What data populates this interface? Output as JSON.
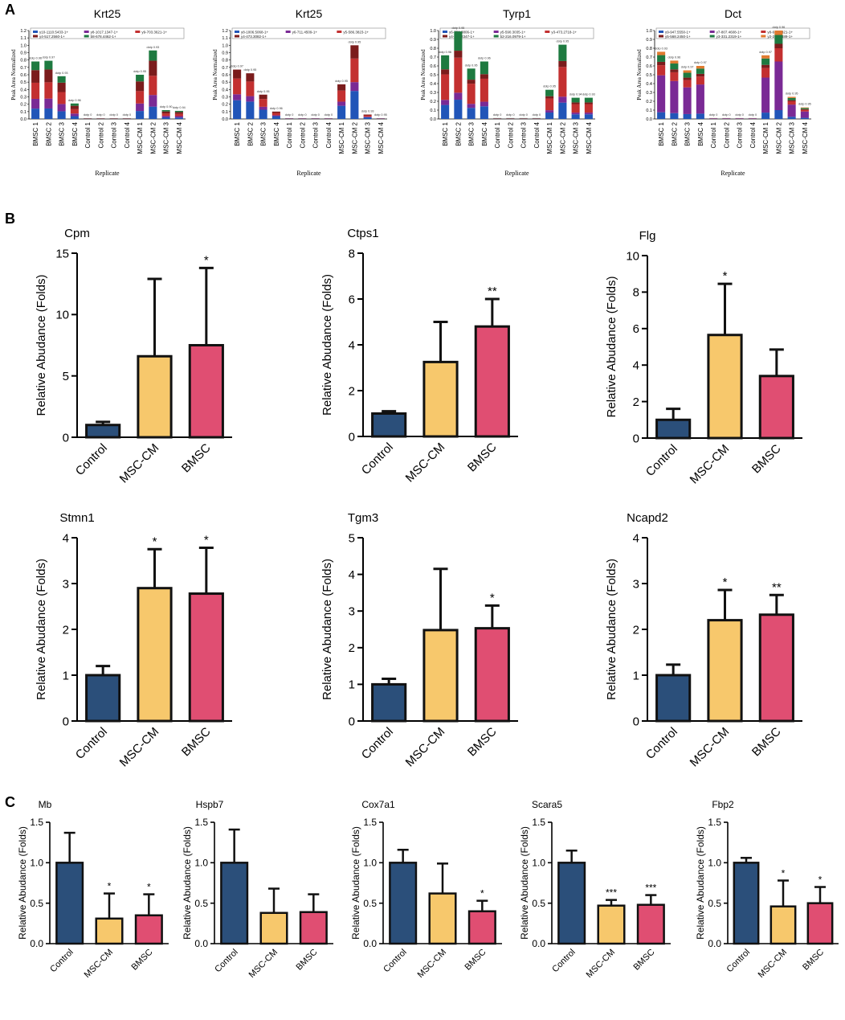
{
  "panel_labels": [
    "A",
    "B",
    "C"
  ],
  "chart_data": [
    {
      "panel": "A",
      "type": "bar",
      "stacked": true,
      "title": "Krt25",
      "ylabel": "Peak Area Normalized",
      "xlabel": "Replicate",
      "ylim": [
        0,
        1.2
      ],
      "yticks": [
        0.0,
        0.1,
        0.2,
        0.3,
        0.4,
        0.5,
        0.6,
        0.7,
        0.8,
        0.9,
        1.0,
        1.1,
        1.2
      ],
      "categories": [
        "BMSC 1",
        "BMSC 2",
        "BMSC 3",
        "BMSC 4",
        "Control 1",
        "Control 2",
        "Control 3",
        "Control 4",
        "MSC-CM 1",
        "MSC-CM 2",
        "MSC-CM 3",
        "MSC-CM 4"
      ],
      "totals": [
        0.78,
        0.79,
        0.58,
        0.21,
        0.01,
        0.01,
        0.01,
        0.01,
        0.6,
        0.93,
        0.12,
        0.11
      ],
      "legend": [
        "y10-1110.5433-1+",
        "y8-1017.1347-1+",
        "y9-703.3621-1+",
        "y4-517.2560-1+",
        "b8-678.4462-1+"
      ],
      "colors": [
        "#2155b8",
        "#7a2a95",
        "#c33030",
        "#7b1c1c",
        "#1e7a40"
      ],
      "fractions": [
        0.18,
        0.17,
        0.28,
        0.22,
        0.15
      ],
      "point_labels": [
        "dotp 0.96",
        "dotp 0.97",
        "dotp 0.93",
        "dotp 0.96",
        "dotp 0",
        "dotp 0",
        "dotp 0",
        "dotp 0",
        "dotp 0.95",
        "dotp 0.93",
        "dotp 0.90",
        "dotp 0.94"
      ]
    },
    {
      "panel": "A",
      "type": "bar",
      "stacked": true,
      "title": "Krt25",
      "ylabel": "Peak Area Normalized",
      "xlabel": "Replicate",
      "ylim": [
        0,
        1.2
      ],
      "yticks": [
        0.0,
        0.1,
        0.2,
        0.3,
        0.4,
        0.5,
        0.6,
        0.7,
        0.8,
        0.9,
        1.0,
        1.1,
        1.2
      ],
      "categories": [
        "BMSC 1",
        "BMSC 2",
        "BMSC 3",
        "BMSC 4",
        "Control 1",
        "Control 2",
        "Control 3",
        "Control 4",
        "MSC-CM 1",
        "MSC-CM 2",
        "MSC-CM 3",
        "MSC-CM 4"
      ],
      "totals": [
        0.67,
        0.62,
        0.33,
        0.1,
        0.01,
        0.01,
        0.01,
        0.01,
        0.47,
        1.0,
        0.06,
        0.01
      ],
      "legend": [
        "y8-1006.5068-1+",
        "y6-711.4509-1+",
        "y5-586.3823-1+",
        "y4-473.3082-1+"
      ],
      "colors": [
        "#2155b8",
        "#7a2a95",
        "#c33030",
        "#7b1c1c"
      ],
      "fractions": [
        0.38,
        0.12,
        0.32,
        0.18
      ],
      "point_labels": [
        "dotp 0.97",
        "dotp 0.95",
        "dotp 0.95",
        "dotp 0.96",
        "dotp 0",
        "dotp 0",
        "dotp 0",
        "dotp 0",
        "dotp 0.95",
        "dotp 0.95",
        "dotp 0.93",
        "dotp 0.95"
      ]
    },
    {
      "panel": "A",
      "type": "bar",
      "stacked": true,
      "title": "Tyrp1",
      "ylabel": "Peak Area Normalized",
      "xlabel": "Replicate",
      "ylim": [
        0,
        1.0
      ],
      "yticks": [
        0.0,
        0.1,
        0.2,
        0.3,
        0.4,
        0.5,
        0.6,
        0.7,
        0.8,
        0.9,
        1.0
      ],
      "categories": [
        "BMSC 1",
        "BMSC 2",
        "BMSC 3",
        "BMSC 4",
        "Control 1",
        "Control 2",
        "Control 3",
        "Control 4",
        "MSC-CM 1",
        "MSC-CM 2",
        "MSC-CM 3",
        "MSC-CM 4"
      ],
      "totals": [
        0.72,
        0.99,
        0.57,
        0.65,
        0.01,
        0.01,
        0.01,
        0.01,
        0.33,
        0.84,
        0.24,
        0.24
      ],
      "legend": [
        "y6-750.3806-1+",
        "y5-590.3035-1+",
        "y3-473.2718-1+",
        "y4-492.2347-1+",
        "b2-216.0979-1+"
      ],
      "colors": [
        "#2155b8",
        "#7a2a95",
        "#c33030",
        "#7b1c1c",
        "#1e7a40"
      ],
      "fractions": [
        0.22,
        0.08,
        0.4,
        0.08,
        0.22
      ],
      "point_labels": [
        "dotp 0.96",
        "dotp 0.95",
        "dotp 0.95",
        "dotp 0.96",
        "dotp 0",
        "dotp 0",
        "dotp 0",
        "dotp 0",
        "dotp 0.95",
        "dotp 0.95",
        "dotp 0.94",
        "dotp 0.93"
      ]
    },
    {
      "panel": "A",
      "type": "bar",
      "stacked": true,
      "title": "Dct",
      "ylabel": "Peak Area Normalized",
      "xlabel": "Replicate",
      "ylim": [
        0,
        1.0
      ],
      "yticks": [
        0.0,
        0.1,
        0.2,
        0.3,
        0.4,
        0.5,
        0.6,
        0.7,
        0.8,
        0.9,
        1.0
      ],
      "categories": [
        "BMSC 1",
        "BMSC 2",
        "BMSC 3",
        "BMSC 4",
        "Control 1",
        "Control 2",
        "Control 3",
        "Control 4",
        "MSC-CM 1",
        "MSC-CM 2",
        "MSC-CM 3",
        "MSC-CM 4"
      ],
      "totals": [
        0.76,
        0.66,
        0.55,
        0.6,
        0.01,
        0.01,
        0.01,
        0.01,
        0.72,
        1.0,
        0.25,
        0.13
      ],
      "legend": [
        "y9-947.5550-1+",
        "y7-807.4608-1+",
        "y8-630.3821-1+",
        "y5-568.2450-1+",
        "y3-331.2319-1+",
        "y2-218.1489-1+"
      ],
      "colors": [
        "#2155b8",
        "#7a2a95",
        "#c33030",
        "#7b1c1c",
        "#1e7a40",
        "#e07a30"
      ],
      "fractions": [
        0.1,
        0.55,
        0.15,
        0.05,
        0.1,
        0.05
      ],
      "point_labels": [
        "dotp 0.93",
        "dotp 0.96",
        "dotp 0.97",
        "dotp 0.97",
        "dotp 0",
        "dotp 0",
        "dotp 0",
        "dotp 0",
        "dotp 0.97",
        "dotp 0.96",
        "dotp 0.95",
        "dotp 0.95"
      ]
    },
    {
      "panel": "B",
      "type": "bar",
      "title": "Cpm",
      "ylabel": "Relative Abudance (Folds)",
      "categories": [
        "Control",
        "MSC-CM",
        "BMSC"
      ],
      "values": [
        1.0,
        6.6,
        7.5
      ],
      "errors": [
        0.25,
        6.3,
        6.3
      ],
      "significance": [
        "",
        "",
        "*"
      ],
      "ylim": [
        0,
        15
      ],
      "yticks": [
        0,
        5,
        10,
        15
      ],
      "colors": [
        "#2b4f7a",
        "#f7c86c",
        "#e04e72"
      ]
    },
    {
      "panel": "B",
      "type": "bar",
      "title": "Ctps1",
      "ylabel": "Relative Abudance (Folds)",
      "categories": [
        "Control",
        "MSC-CM",
        "BMSC"
      ],
      "values": [
        1.0,
        3.25,
        4.8
      ],
      "errors": [
        0.1,
        1.75,
        1.2
      ],
      "significance": [
        "",
        "",
        "**"
      ],
      "ylim": [
        0,
        8
      ],
      "yticks": [
        0,
        2,
        4,
        6,
        8
      ],
      "colors": [
        "#2b4f7a",
        "#f7c86c",
        "#e04e72"
      ]
    },
    {
      "panel": "B",
      "type": "bar",
      "title": "Flg",
      "ylabel": "Relative Abudance (Folds)",
      "categories": [
        "Control",
        "MSC-CM",
        "BMSC"
      ],
      "values": [
        1.0,
        5.65,
        3.4
      ],
      "errors": [
        0.6,
        2.8,
        1.45
      ],
      "significance": [
        "",
        "*",
        ""
      ],
      "ylim": [
        0,
        10
      ],
      "yticks": [
        0,
        2,
        4,
        6,
        8,
        10
      ],
      "colors": [
        "#2b4f7a",
        "#f7c86c",
        "#e04e72"
      ]
    },
    {
      "panel": "B",
      "type": "bar",
      "title": "Stmn1",
      "ylabel": "Relative Abudance (Folds)",
      "categories": [
        "Control",
        "MSC-CM",
        "BMSC"
      ],
      "values": [
        1.0,
        2.9,
        2.78
      ],
      "errors": [
        0.2,
        0.85,
        1.0
      ],
      "significance": [
        "",
        "*",
        "*"
      ],
      "ylim": [
        0,
        4
      ],
      "yticks": [
        0,
        1,
        2,
        3,
        4
      ],
      "colors": [
        "#2b4f7a",
        "#f7c86c",
        "#e04e72"
      ]
    },
    {
      "panel": "B",
      "type": "bar",
      "title": "Tgm3",
      "ylabel": "Relative Abudance (Folds)",
      "categories": [
        "Control",
        "MSC-CM",
        "BMSC"
      ],
      "values": [
        1.0,
        2.48,
        2.53
      ],
      "errors": [
        0.15,
        1.67,
        0.62
      ],
      "significance": [
        "",
        "",
        "*"
      ],
      "ylim": [
        0,
        5
      ],
      "yticks": [
        0,
        1,
        2,
        3,
        4,
        5
      ],
      "colors": [
        "#2b4f7a",
        "#f7c86c",
        "#e04e72"
      ]
    },
    {
      "panel": "B",
      "type": "bar",
      "title": "Ncapd2",
      "ylabel": "Relative Abudance (Folds)",
      "categories": [
        "Control",
        "MSC-CM",
        "BMSC"
      ],
      "values": [
        1.0,
        2.2,
        2.32
      ],
      "errors": [
        0.23,
        0.66,
        0.43
      ],
      "significance": [
        "",
        "*",
        "**"
      ],
      "ylim": [
        0,
        4
      ],
      "yticks": [
        0,
        1,
        2,
        3,
        4
      ],
      "colors": [
        "#2b4f7a",
        "#f7c86c",
        "#e04e72"
      ]
    },
    {
      "panel": "C",
      "type": "bar",
      "title": "Mb",
      "ylabel": "Relative Abudance (Folds)",
      "categories": [
        "Control",
        "MSC-CM",
        "BMSC"
      ],
      "values": [
        1.0,
        0.31,
        0.35
      ],
      "errors": [
        0.37,
        0.31,
        0.26
      ],
      "significance": [
        "",
        "*",
        "*"
      ],
      "ylim": [
        0,
        1.5
      ],
      "yticks": [
        0.0,
        0.5,
        1.0,
        1.5
      ],
      "colors": [
        "#2b4f7a",
        "#f7c86c",
        "#e04e72"
      ]
    },
    {
      "panel": "C",
      "type": "bar",
      "title": "Hspb7",
      "ylabel": "Relative Abudance (Folds)",
      "categories": [
        "Control",
        "MSC-CM",
        "BMSC"
      ],
      "values": [
        1.0,
        0.38,
        0.39
      ],
      "errors": [
        0.41,
        0.3,
        0.22
      ],
      "significance": [
        "",
        "",
        ""
      ],
      "ylim": [
        0,
        1.5
      ],
      "yticks": [
        0.0,
        0.5,
        1.0,
        1.5
      ],
      "colors": [
        "#2b4f7a",
        "#f7c86c",
        "#e04e72"
      ]
    },
    {
      "panel": "C",
      "type": "bar",
      "title": "Cox7a1",
      "ylabel": "Relative Abudance (Folds)",
      "categories": [
        "Control",
        "MSC-CM",
        "BMSC"
      ],
      "values": [
        1.0,
        0.62,
        0.4
      ],
      "errors": [
        0.16,
        0.37,
        0.13
      ],
      "significance": [
        "",
        "",
        "*"
      ],
      "ylim": [
        0,
        1.5
      ],
      "yticks": [
        0.0,
        0.5,
        1.0,
        1.5
      ],
      "colors": [
        "#2b4f7a",
        "#f7c86c",
        "#e04e72"
      ]
    },
    {
      "panel": "C",
      "type": "bar",
      "title": "Scara5",
      "ylabel": "Relative Abudance (Folds)",
      "categories": [
        "Control",
        "MSC-CM",
        "BMSC"
      ],
      "values": [
        1.0,
        0.47,
        0.48
      ],
      "errors": [
        0.15,
        0.07,
        0.12
      ],
      "significance": [
        "",
        "***",
        "***"
      ],
      "ylim": [
        0,
        1.5
      ],
      "yticks": [
        0.0,
        0.5,
        1.0,
        1.5
      ],
      "colors": [
        "#2b4f7a",
        "#f7c86c",
        "#e04e72"
      ]
    },
    {
      "panel": "C",
      "type": "bar",
      "title": "Fbp2",
      "ylabel": "Relative Abudance (Folds)",
      "categories": [
        "Control",
        "MSC-CM",
        "BMSC"
      ],
      "values": [
        1.0,
        0.46,
        0.5
      ],
      "errors": [
        0.06,
        0.32,
        0.2
      ],
      "significance": [
        "",
        "*",
        "*"
      ],
      "ylim": [
        0,
        1.5
      ],
      "yticks": [
        0.0,
        0.5,
        1.0,
        1.5
      ],
      "colors": [
        "#2b4f7a",
        "#f7c86c",
        "#e04e72"
      ]
    }
  ]
}
